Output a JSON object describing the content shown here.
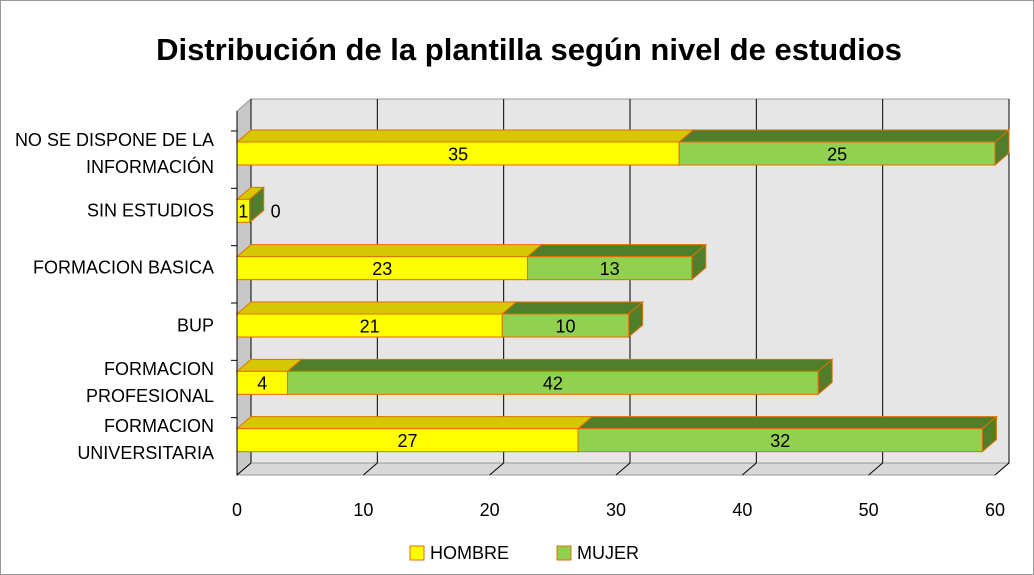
{
  "chart_data": {
    "type": "bar",
    "stacked": true,
    "orientation": "horizontal",
    "title": "Distribución de la plantilla según nivel de estudios",
    "categories": [
      "NO SE DISPONE DE LA INFORMACIÓN",
      "SIN ESTUDIOS",
      "FORMACION BASICA",
      "BUP",
      "FORMACION PROFESIONAL",
      "FORMACION UNIVERSITARIA"
    ],
    "series": [
      {
        "name": "HOMBRE",
        "color": "#ffff00",
        "values": [
          35,
          1,
          23,
          21,
          4,
          27
        ]
      },
      {
        "name": "MUJER",
        "color": "#92d050",
        "values": [
          25,
          0,
          13,
          10,
          42,
          32
        ]
      }
    ],
    "xlim": [
      0,
      60
    ],
    "xticks": [
      0,
      10,
      20,
      30,
      40,
      50,
      60
    ],
    "grid": true,
    "legend": "bottom"
  }
}
